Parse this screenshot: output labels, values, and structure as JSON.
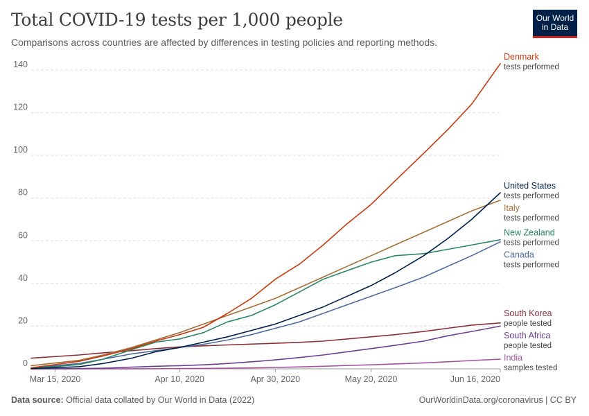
{
  "header": {
    "title": "Total COVID-19 tests per 1,000 people",
    "subtitle": "Comparisons across countries are affected by differences in testing policies and reporting methods.",
    "logo_line1": "Our World",
    "logo_line2": "in Data"
  },
  "footer": {
    "source_label": "Data source:",
    "source_text": "Official data collated by Our World in Data (2022)",
    "right_text": "OurWorldinData.org/coronavirus | CC BY"
  },
  "colors": {
    "logo_bg": "#002147",
    "logo_accent": "#ce261e",
    "grid": "#dddddd"
  },
  "chart_data": {
    "type": "line",
    "title": "Total COVID-19 tests per 1,000 people",
    "x_start": "Mar 10, 2020",
    "x_end": "Jun 16, 2020",
    "x_tick_labels": [
      "Mar 15, 2020",
      "Apr 10, 2020",
      "Apr 30, 2020",
      "May 20, 2020",
      "Jun 16, 2020"
    ],
    "x_tick_dates": [
      "2020-03-15",
      "2020-04-10",
      "2020-04-30",
      "2020-05-20",
      "2020-06-16"
    ],
    "ylim": [
      0,
      140
    ],
    "y_ticks": [
      0,
      20,
      40,
      60,
      80,
      100,
      120,
      140
    ],
    "grid": "horizontal dashed",
    "legend": "labels at line ends (right)",
    "series": [
      {
        "name": "Denmark",
        "note": "tests performed",
        "color": "#c33b12",
        "x": [
          "2020-03-10",
          "2020-03-20",
          "2020-03-25",
          "2020-03-31",
          "2020-04-05",
          "2020-04-10",
          "2020-04-15",
          "2020-04-20",
          "2020-04-25",
          "2020-04-30",
          "2020-05-05",
          "2020-05-10",
          "2020-05-15",
          "2020-05-20",
          "2020-05-25",
          "2020-05-31",
          "2020-06-05",
          "2020-06-10",
          "2020-06-16"
        ],
        "y": [
          0.5,
          3.5,
          6,
          9.5,
          13,
          16,
          19.5,
          26,
          33,
          42,
          49,
          58,
          68,
          77,
          88,
          101,
          112,
          124,
          143
        ]
      },
      {
        "name": "United States",
        "note": "tests performed",
        "color": "#002147",
        "x": [
          "2020-03-10",
          "2020-03-20",
          "2020-03-25",
          "2020-03-31",
          "2020-04-05",
          "2020-04-10",
          "2020-04-15",
          "2020-04-20",
          "2020-04-25",
          "2020-04-30",
          "2020-05-05",
          "2020-05-10",
          "2020-05-15",
          "2020-05-20",
          "2020-05-25",
          "2020-05-31",
          "2020-06-05",
          "2020-06-10",
          "2020-06-16"
        ],
        "y": [
          0.1,
          1,
          2.5,
          5,
          8,
          10,
          12.5,
          15,
          18,
          21,
          25,
          29,
          34,
          39,
          45,
          53,
          61,
          70,
          82.5
        ]
      },
      {
        "name": "Italy",
        "note": "tests performed",
        "color": "#a26f3a",
        "x": [
          "2020-03-10",
          "2020-03-20",
          "2020-03-25",
          "2020-03-31",
          "2020-04-05",
          "2020-04-10",
          "2020-04-15",
          "2020-04-20",
          "2020-04-25",
          "2020-04-30",
          "2020-05-05",
          "2020-05-10",
          "2020-05-15",
          "2020-05-20",
          "2020-05-25",
          "2020-05-31",
          "2020-06-05",
          "2020-06-10",
          "2020-06-16"
        ],
        "y": [
          1.5,
          4,
          6.5,
          10,
          13.5,
          17,
          21,
          25,
          29,
          33,
          38,
          43,
          48,
          53,
          58,
          64,
          69,
          74,
          79
        ]
      },
      {
        "name": "New Zealand",
        "note": "tests performed",
        "color": "#2b8465",
        "x": [
          "2020-03-10",
          "2020-03-20",
          "2020-03-25",
          "2020-03-31",
          "2020-04-05",
          "2020-04-10",
          "2020-04-15",
          "2020-04-20",
          "2020-04-25",
          "2020-04-30",
          "2020-05-05",
          "2020-05-10",
          "2020-05-15",
          "2020-05-20",
          "2020-05-25",
          "2020-05-31",
          "2020-06-05",
          "2020-06-10",
          "2020-06-16"
        ],
        "y": [
          0.1,
          2,
          4.5,
          9,
          12.5,
          14,
          17,
          22,
          25,
          30,
          36,
          42,
          46,
          50,
          53,
          54,
          56,
          58,
          60.5
        ]
      },
      {
        "name": "Canada",
        "note": "tests performed",
        "color": "#4c6a9c",
        "x": [
          "2020-03-10",
          "2020-03-20",
          "2020-03-25",
          "2020-03-31",
          "2020-04-05",
          "2020-04-10",
          "2020-04-15",
          "2020-04-20",
          "2020-04-25",
          "2020-04-30",
          "2020-05-05",
          "2020-05-10",
          "2020-05-15",
          "2020-05-20",
          "2020-05-25",
          "2020-05-31",
          "2020-06-05",
          "2020-06-10",
          "2020-06-16"
        ],
        "y": [
          0.5,
          2.5,
          4.5,
          7,
          8.5,
          10,
          11.5,
          13.5,
          16,
          19,
          22,
          26,
          30,
          34,
          38,
          43,
          48,
          53,
          59.5
        ]
      },
      {
        "name": "South Korea",
        "note": "people tested",
        "color": "#883039",
        "x": [
          "2020-03-10",
          "2020-03-20",
          "2020-03-25",
          "2020-03-31",
          "2020-04-05",
          "2020-04-10",
          "2020-04-15",
          "2020-04-20",
          "2020-04-25",
          "2020-04-30",
          "2020-05-05",
          "2020-05-10",
          "2020-05-15",
          "2020-05-20",
          "2020-05-25",
          "2020-05-31",
          "2020-06-05",
          "2020-06-10",
          "2020-06-16"
        ],
        "y": [
          5,
          6.5,
          7.5,
          8.5,
          9.5,
          10.3,
          10.8,
          11.2,
          11.6,
          12,
          12.4,
          13,
          14,
          15,
          16,
          17.5,
          19,
          20.5,
          21.5
        ]
      },
      {
        "name": "South Africa",
        "note": "people tested",
        "color": "#6d3e91",
        "x": [
          "2020-03-10",
          "2020-03-20",
          "2020-03-25",
          "2020-03-31",
          "2020-04-05",
          "2020-04-10",
          "2020-04-15",
          "2020-04-20",
          "2020-04-25",
          "2020-04-30",
          "2020-05-05",
          "2020-05-10",
          "2020-05-15",
          "2020-05-20",
          "2020-05-25",
          "2020-05-31",
          "2020-06-05",
          "2020-06-10",
          "2020-06-16"
        ],
        "y": [
          0,
          0.1,
          0.3,
          0.8,
          1.2,
          1.5,
          1.9,
          2.5,
          3.3,
          4.2,
          5.3,
          6.5,
          8,
          9.5,
          11,
          13,
          15.5,
          17.5,
          20
        ]
      },
      {
        "name": "India",
        "note": "samples tested",
        "color": "#a2559c",
        "x": [
          "2020-03-10",
          "2020-03-20",
          "2020-03-25",
          "2020-03-31",
          "2020-04-05",
          "2020-04-10",
          "2020-04-15",
          "2020-04-20",
          "2020-04-25",
          "2020-04-30",
          "2020-05-05",
          "2020-05-10",
          "2020-05-15",
          "2020-05-20",
          "2020-05-25",
          "2020-05-31",
          "2020-06-05",
          "2020-06-10",
          "2020-06-16"
        ],
        "y": [
          0,
          0.01,
          0.02,
          0.03,
          0.08,
          0.13,
          0.2,
          0.3,
          0.45,
          0.65,
          0.9,
          1.2,
          1.6,
          1.9,
          2.3,
          2.8,
          3.3,
          3.9,
          4.5
        ]
      }
    ],
    "end_label_y": [
      143,
      82.5,
      79,
      60.5,
      59.5,
      21.5,
      20,
      4.5
    ]
  }
}
